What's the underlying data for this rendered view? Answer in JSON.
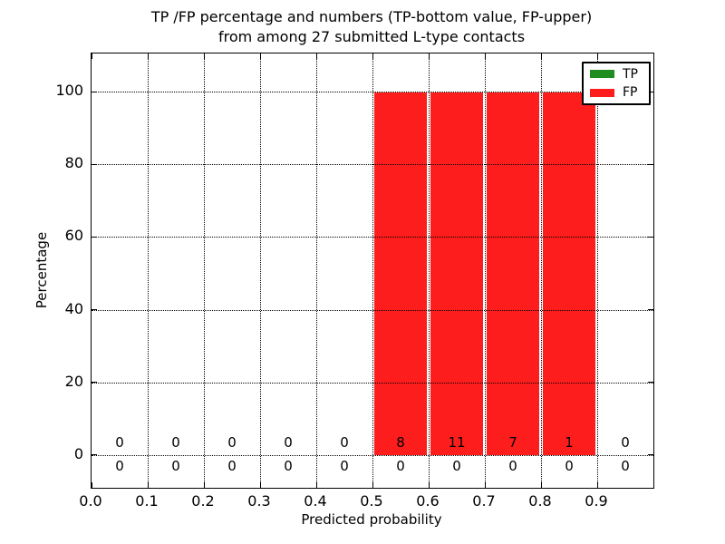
{
  "chart_data": {
    "type": "bar",
    "title_line1": "TP /FP percentage and numbers (TP-bottom value, FP-upper)",
    "title_line2": "from among 27 submitted L-type contacts",
    "xlabel": "Predicted probability",
    "ylabel": "Percentage",
    "xlim": [
      0.0,
      1.0
    ],
    "ylim": [
      -9,
      110.5
    ],
    "xticks": [
      0.0,
      0.1,
      0.2,
      0.3,
      0.4,
      0.5,
      0.6,
      0.7,
      0.8,
      0.9
    ],
    "xtick_labels": [
      "0.0",
      "0.1",
      "0.2",
      "0.3",
      "0.4",
      "0.5",
      "0.6",
      "0.7",
      "0.8",
      "0.9"
    ],
    "yticks": [
      0,
      20,
      40,
      60,
      80,
      100
    ],
    "ytick_labels": [
      "0",
      "20",
      "40",
      "60",
      "80",
      "100"
    ],
    "grid": true,
    "grid_style": "dotted",
    "bin_edges": [
      0.0,
      0.1,
      0.2,
      0.3,
      0.4,
      0.5,
      0.6,
      0.7,
      0.8,
      0.9,
      1.0
    ],
    "bin_centers": [
      0.05,
      0.15,
      0.25,
      0.35,
      0.45,
      0.55,
      0.65,
      0.75,
      0.85,
      0.95
    ],
    "series": [
      {
        "name": "TP",
        "color": "#1f8c1f",
        "count_row": "lower",
        "percent": [
          0,
          0,
          0,
          0,
          0,
          0,
          0,
          0,
          0,
          0
        ],
        "counts": [
          0,
          0,
          0,
          0,
          0,
          0,
          0,
          0,
          0,
          0
        ]
      },
      {
        "name": "FP",
        "color": "#fe1d1d",
        "count_row": "upper",
        "percent": [
          0,
          0,
          0,
          0,
          0,
          100,
          100,
          100,
          100,
          0
        ],
        "counts": [
          0,
          0,
          0,
          0,
          0,
          8,
          11,
          7,
          1,
          0
        ]
      }
    ],
    "legend": {
      "position": "upper right",
      "entries": [
        {
          "label": "TP",
          "color": "#1f8c1f"
        },
        {
          "label": "FP",
          "color": "#fe1d1d"
        }
      ]
    }
  }
}
